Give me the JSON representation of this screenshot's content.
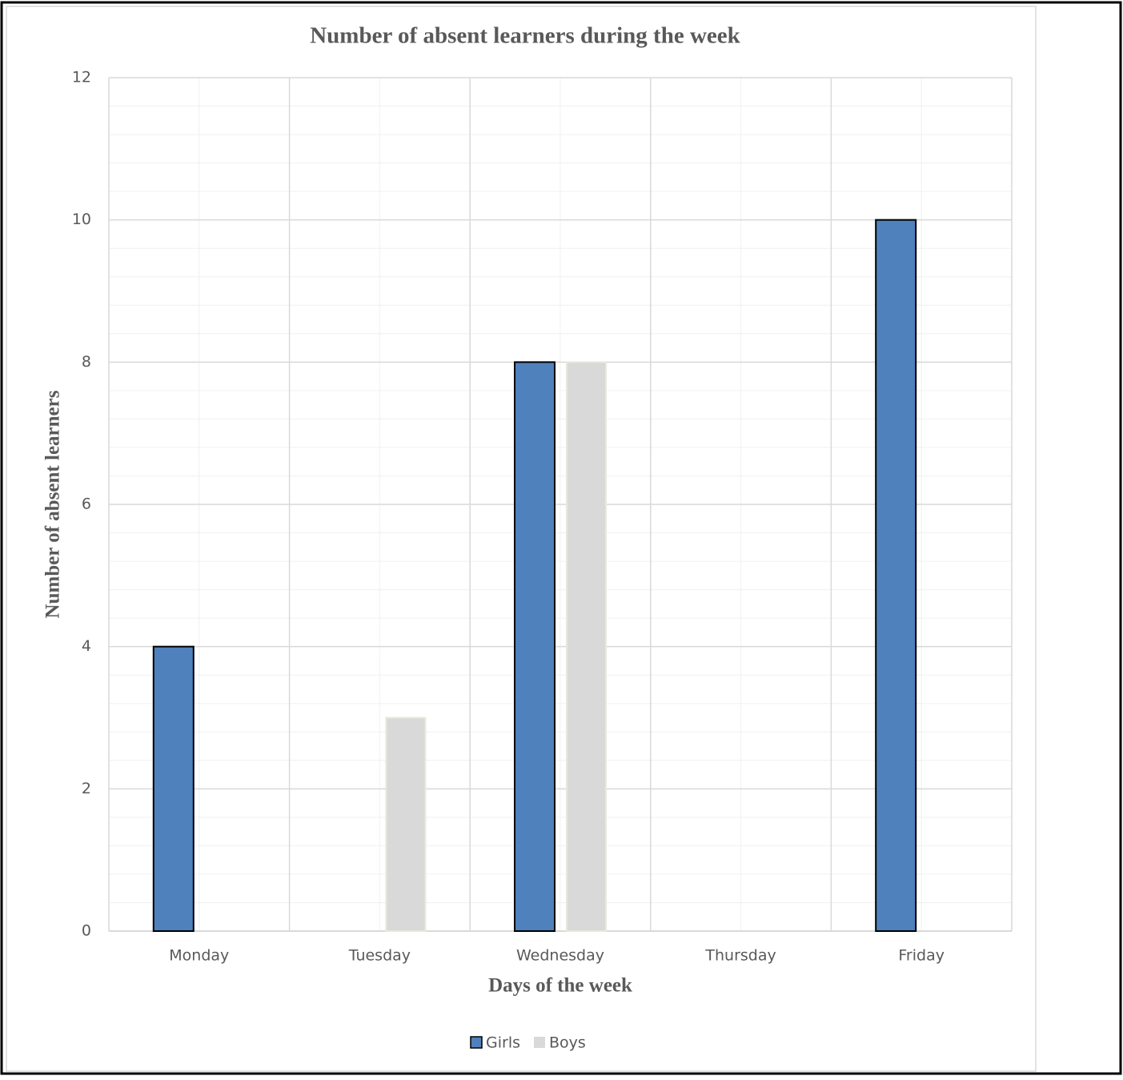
{
  "chart_data": {
    "type": "bar",
    "title": "Number of absent  learners during the week",
    "x_label": "Days of the week",
    "y_label": "Number of absent learners",
    "categories": [
      "Monday",
      "Tuesday",
      "Wednesday",
      "Thursday",
      "Friday"
    ],
    "series": [
      {
        "name": "Girls",
        "color": "#4f81bd",
        "values": [
          4,
          0,
          8,
          0,
          10
        ]
      },
      {
        "name": "Boys",
        "color": "#d9d9d9",
        "values": [
          0,
          3,
          8,
          0,
          0
        ]
      }
    ],
    "ylim": [
      0,
      12
    ],
    "yticks": [
      0,
      2,
      4,
      6,
      8,
      10,
      12
    ],
    "grid": true,
    "legend": "bottom"
  }
}
